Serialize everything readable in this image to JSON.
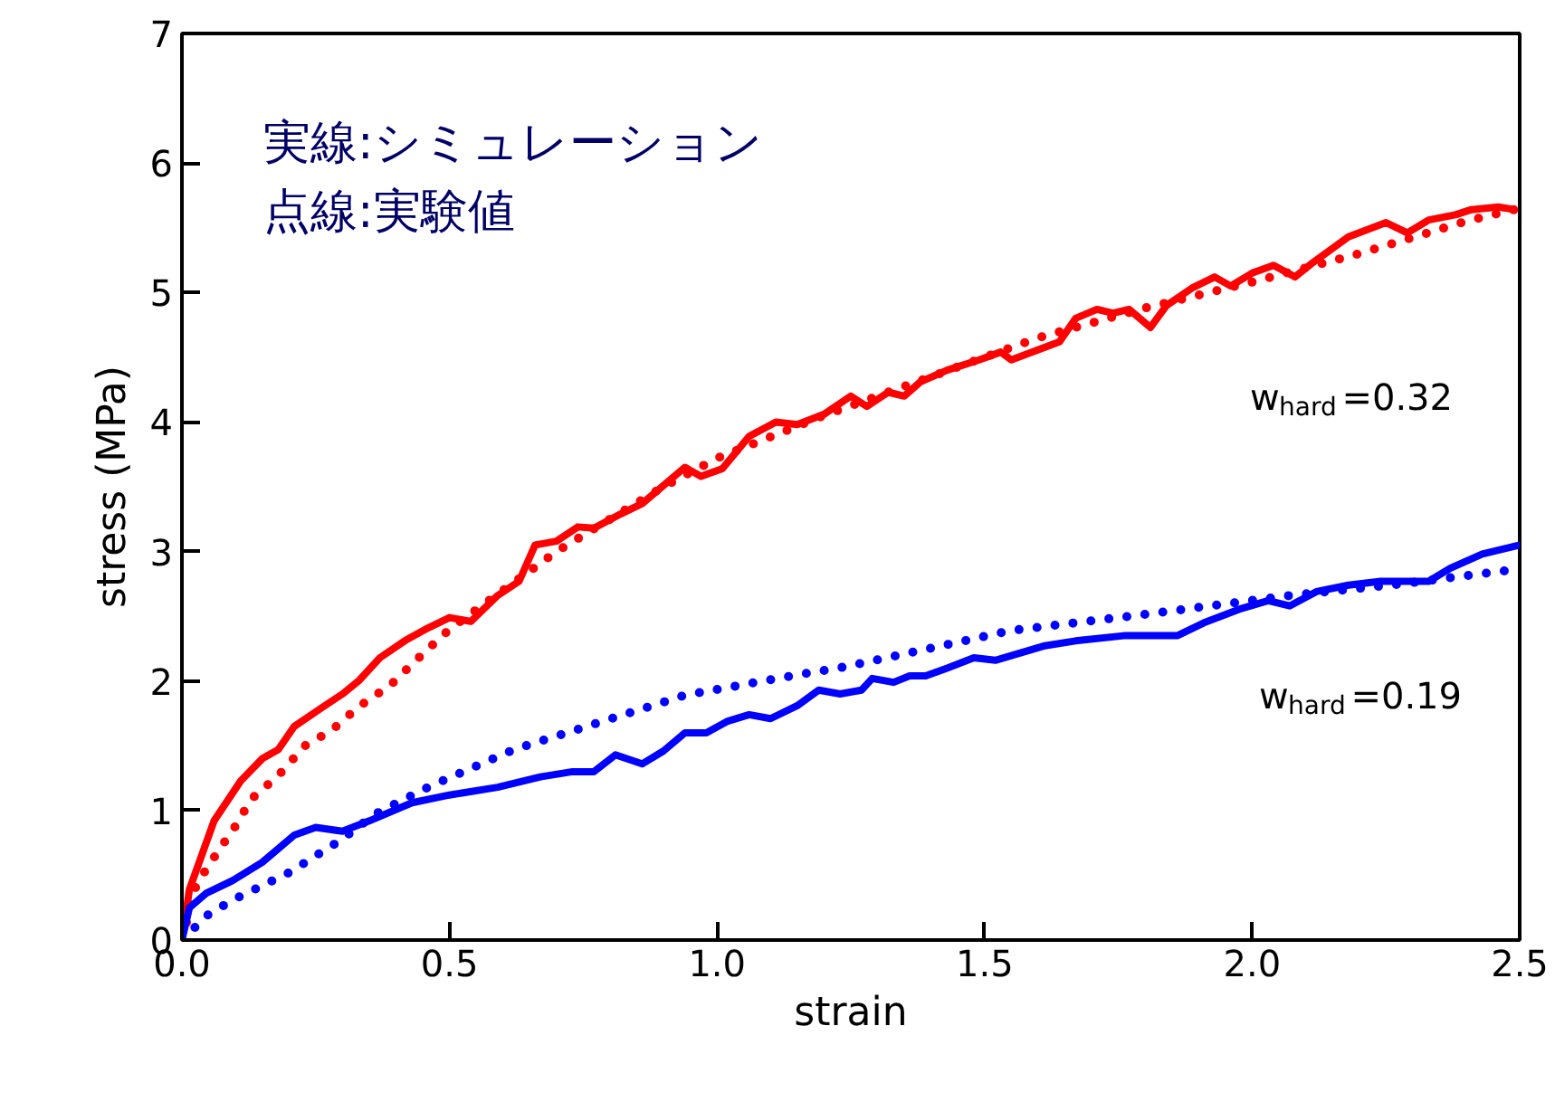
{
  "chart_data": {
    "type": "line",
    "xlabel": "strain",
    "ylabel": "stress (MPa)",
    "xlim": [
      0,
      2.5
    ],
    "ylim": [
      0,
      7
    ],
    "xticks": [
      {
        "value": 0,
        "label": "0.0"
      },
      {
        "value": 0.5,
        "label": "0.5"
      },
      {
        "value": 1,
        "label": "1.0"
      },
      {
        "value": 1.5,
        "label": "1.5"
      },
      {
        "value": 2,
        "label": "2.0"
      },
      {
        "value": 2.5,
        "label": "2.5"
      }
    ],
    "yticks": [
      0,
      1,
      2,
      3,
      4,
      5,
      6,
      7
    ],
    "grid": false,
    "marker": "none",
    "annotations": [
      "実線:シミュレーション",
      "点線:実験値",
      "w$_{hard}$=0.32",
      "w$_{hard}$=0.19"
    ],
    "series": [
      {
        "color": "#ff0000",
        "line_style": "solid",
        "x": [
          0,
          0.014,
          0.06,
          0.11,
          0.15,
          0.18,
          0.21,
          0.26,
          0.3,
          0.33,
          0.37,
          0.42,
          0.46,
          0.5,
          0.54,
          0.59,
          0.63,
          0.66,
          0.7,
          0.74,
          0.77,
          0.82,
          0.86,
          0.94,
          0.97,
          1.01,
          1.06,
          1.11,
          1.15,
          1.2,
          1.25,
          1.28,
          1.32,
          1.35,
          1.38,
          1.43,
          1.49,
          1.53,
          1.55,
          1.64,
          1.67,
          1.71,
          1.74,
          1.77,
          1.81,
          1.84,
          1.89,
          1.93,
          1.96,
          2.0,
          2.04,
          2.08,
          2.11,
          2.18,
          2.25,
          2.29,
          2.33,
          2.38,
          2.41,
          2.46,
          2.49
        ],
        "values": [
          0,
          0.39,
          0.92,
          1.23,
          1.4,
          1.47,
          1.65,
          1.79,
          1.9,
          2.0,
          2.18,
          2.32,
          2.41,
          2.49,
          2.46,
          2.66,
          2.77,
          3.05,
          3.08,
          3.19,
          3.18,
          3.29,
          3.37,
          3.65,
          3.58,
          3.64,
          3.89,
          4.0,
          3.98,
          4.06,
          4.2,
          4.12,
          4.23,
          4.2,
          4.31,
          4.4,
          4.48,
          4.54,
          4.48,
          4.62,
          4.8,
          4.87,
          4.84,
          4.87,
          4.73,
          4.9,
          5.04,
          5.12,
          5.05,
          5.15,
          5.21,
          5.12,
          5.22,
          5.43,
          5.54,
          5.46,
          5.56,
          5.6,
          5.64,
          5.66,
          5.64
        ]
      },
      {
        "color": "#ff0000",
        "line_style": "dotted",
        "x": [
          0,
          0.027,
          0.07,
          0.1,
          0.13,
          0.18,
          0.23,
          0.28,
          0.33,
          0.39,
          0.44,
          0.5,
          0.6,
          0.7,
          0.8,
          0.9,
          1.0,
          1.2,
          1.4,
          1.6,
          1.8,
          2.0,
          2.2,
          2.4,
          2.5
        ],
        "values": [
          0,
          0.43,
          0.7,
          0.88,
          1.09,
          1.27,
          1.5,
          1.62,
          1.8,
          1.97,
          2.17,
          2.4,
          2.7,
          3.0,
          3.25,
          3.5,
          3.72,
          4.05,
          4.35,
          4.65,
          4.88,
          5.08,
          5.3,
          5.55,
          5.65
        ]
      },
      {
        "color": "#0000ff",
        "line_style": "solid",
        "x": [
          0,
          0.014,
          0.045,
          0.095,
          0.15,
          0.21,
          0.25,
          0.3,
          0.35,
          0.43,
          0.5,
          0.59,
          0.67,
          0.73,
          0.77,
          0.81,
          0.86,
          0.9,
          0.94,
          0.98,
          1.02,
          1.06,
          1.1,
          1.15,
          1.19,
          1.23,
          1.27,
          1.29,
          1.33,
          1.36,
          1.39,
          1.43,
          1.48,
          1.52,
          1.61,
          1.67,
          1.76,
          1.86,
          1.91,
          1.98,
          2.03,
          2.07,
          2.12,
          2.18,
          2.24,
          2.33,
          2.37,
          2.43,
          2.5
        ],
        "values": [
          0,
          0.25,
          0.36,
          0.46,
          0.6,
          0.81,
          0.87,
          0.84,
          0.92,
          1.06,
          1.12,
          1.18,
          1.26,
          1.3,
          1.3,
          1.43,
          1.36,
          1.46,
          1.6,
          1.6,
          1.69,
          1.74,
          1.71,
          1.81,
          1.93,
          1.9,
          1.93,
          2.02,
          1.99,
          2.04,
          2.04,
          2.1,
          2.18,
          2.16,
          2.27,
          2.31,
          2.35,
          2.35,
          2.45,
          2.56,
          2.62,
          2.58,
          2.69,
          2.74,
          2.77,
          2.77,
          2.87,
          2.98,
          3.05
        ]
      },
      {
        "color": "#0000ff",
        "line_style": "dotted",
        "x": [
          0,
          0.05,
          0.1,
          0.2,
          0.3,
          0.36,
          0.46,
          0.62,
          0.78,
          0.94,
          1.14,
          1.24,
          1.55,
          1.81,
          2.07,
          2.28,
          2.49
        ],
        "values": [
          0,
          0.2,
          0.32,
          0.52,
          0.78,
          0.97,
          1.18,
          1.47,
          1.68,
          1.89,
          2.04,
          2.11,
          2.39,
          2.52,
          2.66,
          2.75,
          2.86
        ]
      }
    ]
  }
}
